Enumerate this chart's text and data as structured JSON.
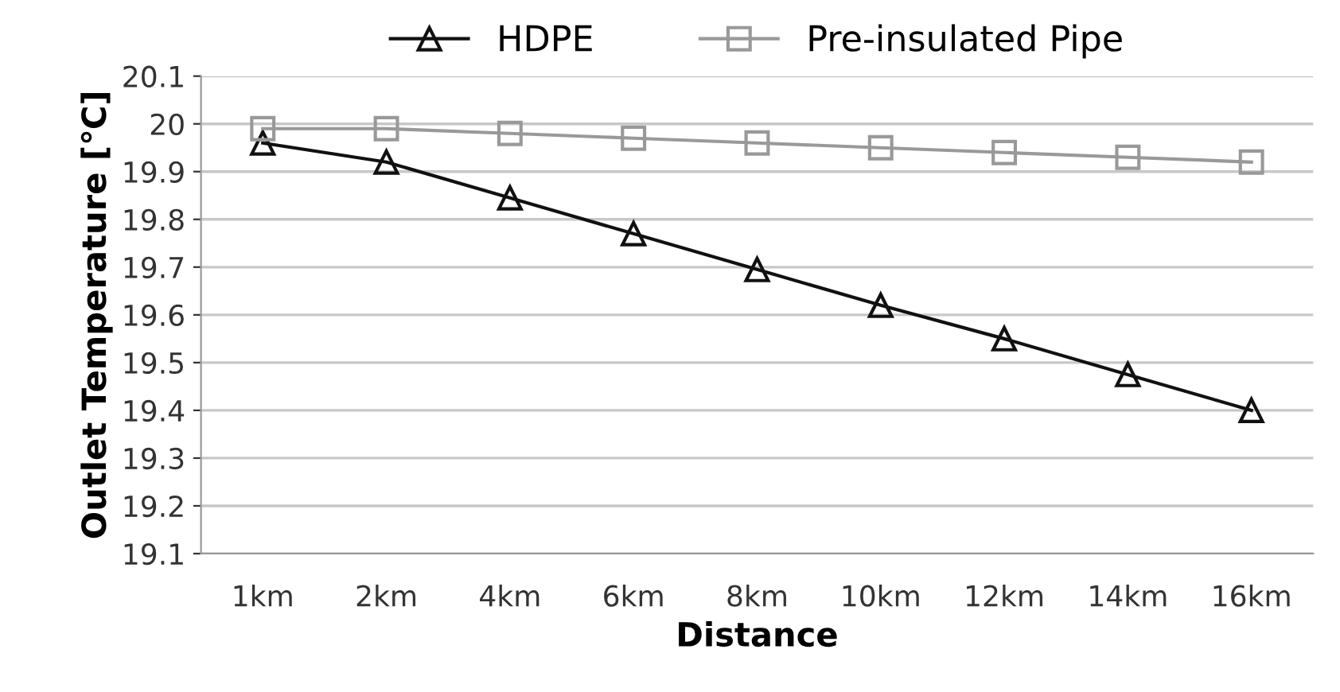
{
  "chart_data": {
    "type": "line",
    "xlabel": "Distance",
    "ylabel": "Outlet Temperature [℃]",
    "categories": [
      "1km",
      "2km",
      "4km",
      "6km",
      "8km",
      "10km",
      "12km",
      "14km",
      "16km"
    ],
    "series": [
      {
        "name": "HDPE",
        "color": "#111111",
        "marker": "triangle",
        "values": [
          19.96,
          19.92,
          19.845,
          19.77,
          19.695,
          19.62,
          19.55,
          19.475,
          19.4
        ]
      },
      {
        "name": "Pre-insulated Pipe",
        "color": "#999999",
        "marker": "square",
        "values": [
          19.99,
          19.99,
          19.98,
          19.97,
          19.96,
          19.95,
          19.94,
          19.93,
          19.92
        ]
      }
    ],
    "ylim": [
      19.1,
      20.1
    ],
    "yticks": [
      19.1,
      19.2,
      19.3,
      19.4,
      19.5,
      19.6,
      19.7,
      19.8,
      19.9,
      20,
      20.1
    ],
    "grid": "y",
    "legend": "top"
  }
}
